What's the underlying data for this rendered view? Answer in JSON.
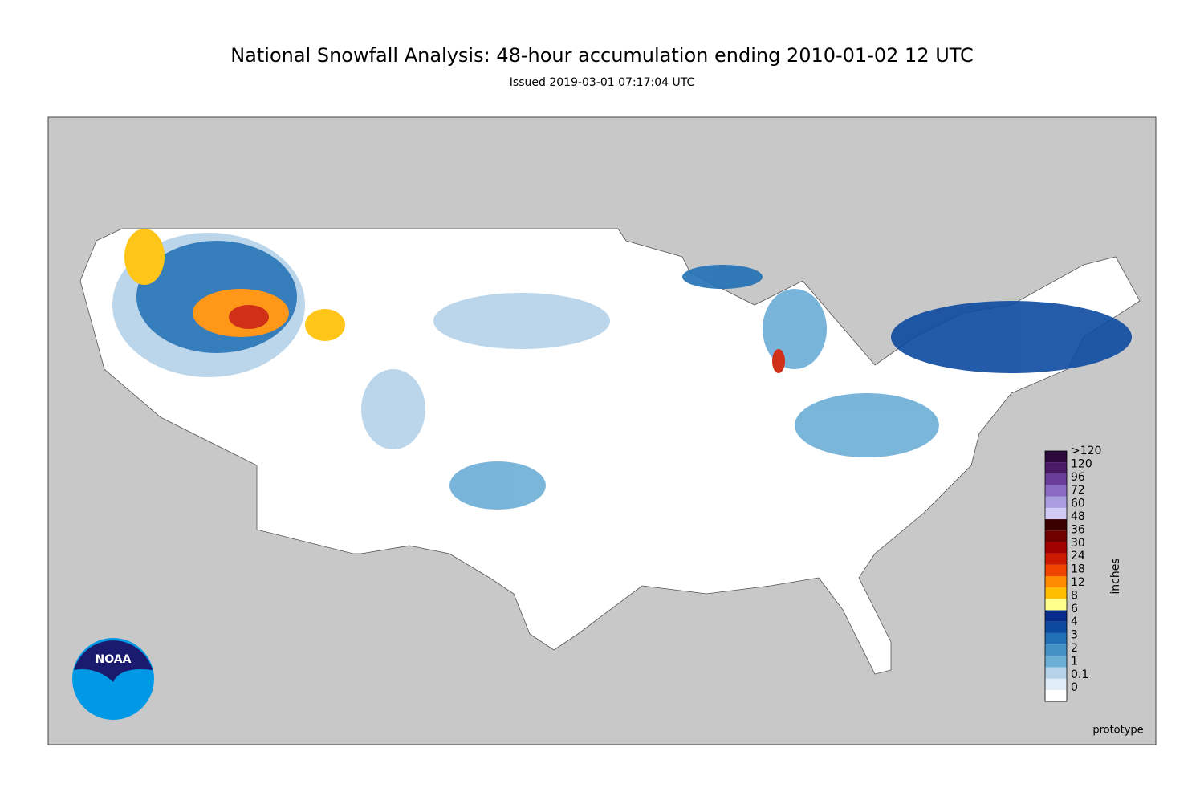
{
  "header": {
    "title": "National Snowfall Analysis: 48-hour accumulation ending 2010-01-02 12 UTC",
    "subtitle": "Issued 2019-03-01 07:17:04 UTC"
  },
  "legend": {
    "unit": "inches",
    "items": [
      {
        "label": ">120",
        "color": "#2c0a3d"
      },
      {
        "label": "120",
        "color": "#4a1a66"
      },
      {
        "label": "96",
        "color": "#6b3d9a"
      },
      {
        "label": "72",
        "color": "#8c6bc4"
      },
      {
        "label": "60",
        "color": "#ab9ee0"
      },
      {
        "label": "48",
        "color": "#cfcbf5"
      },
      {
        "label": "36",
        "color": "#3a0000"
      },
      {
        "label": "30",
        "color": "#6e0000"
      },
      {
        "label": "24",
        "color": "#a00000"
      },
      {
        "label": "18",
        "color": "#cc1a00"
      },
      {
        "label": "12",
        "color": "#ee4400"
      },
      {
        "label": "8",
        "color": "#ff8c00"
      },
      {
        "label": "6",
        "color": "#ffbf00"
      },
      {
        "label": "4",
        "color": "#ffff8c"
      },
      {
        "label": "3",
        "color": "#0a2c8c"
      },
      {
        "label": "2",
        "color": "#0c4aa0"
      },
      {
        "label": "1",
        "color": "#2170b5"
      },
      {
        "label": "0.1",
        "color": "#4292c6"
      },
      {
        "label": "0",
        "color": "#6baed6"
      }
    ],
    "extra": [
      {
        "color": "#b4d2e8"
      },
      {
        "color": "#e0ecf6"
      },
      {
        "color": "#ffffff"
      }
    ]
  },
  "logo": {
    "text": "NOAA"
  },
  "footer": {
    "note": "prototype"
  }
}
